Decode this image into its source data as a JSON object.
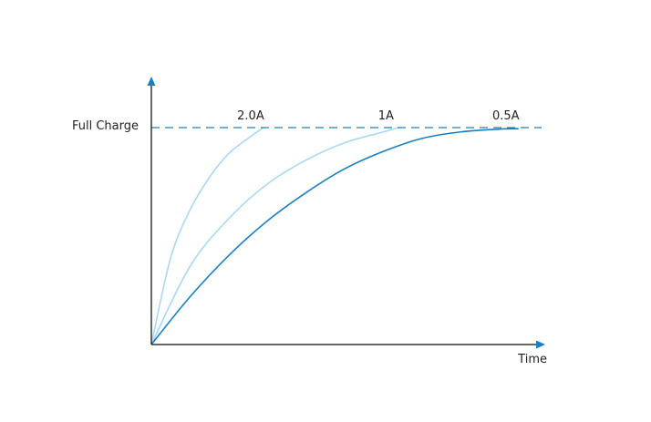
{
  "chart_data": {
    "type": "line",
    "title": "",
    "xlabel": "Time",
    "ylabel": "",
    "y_reference": {
      "label": "Full Charge",
      "style": "dashed",
      "color": "#1a7fc0"
    },
    "x_range": [
      0,
      100
    ],
    "y_range": [
      0,
      100
    ],
    "grid": false,
    "legend": "none",
    "axis_color": "#333333",
    "arrow_color": "#1a7fc0",
    "series": [
      {
        "name": "2.0A",
        "color": "#a9d8f2",
        "points": [
          [
            0,
            0
          ],
          [
            5,
            40
          ],
          [
            10,
            62
          ],
          [
            15,
            77
          ],
          [
            20,
            88
          ],
          [
            25,
            95
          ],
          [
            29,
            100
          ]
        ]
      },
      {
        "name": "1A",
        "color": "#a9d8f2",
        "points": [
          [
            0,
            0
          ],
          [
            10,
            36
          ],
          [
            20,
            58
          ],
          [
            30,
            74
          ],
          [
            40,
            85
          ],
          [
            50,
            93
          ],
          [
            60,
            98
          ],
          [
            64,
            100
          ]
        ]
      },
      {
        "name": "0.5A",
        "color": "#1a7fc0",
        "points": [
          [
            0,
            0
          ],
          [
            10,
            22
          ],
          [
            20,
            41
          ],
          [
            30,
            57
          ],
          [
            40,
            70
          ],
          [
            50,
            81
          ],
          [
            60,
            89
          ],
          [
            70,
            95
          ],
          [
            80,
            98
          ],
          [
            90,
            99.3
          ],
          [
            95,
            99.5
          ]
        ]
      }
    ]
  }
}
